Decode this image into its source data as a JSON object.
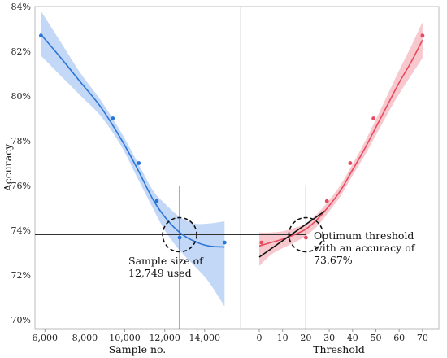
{
  "chart_data": {
    "type": "scatter",
    "ylabel": "Accuracy",
    "ylim": [
      69.6,
      84
    ],
    "y_ticks": [
      "70%",
      "72%",
      "74%",
      "76%",
      "78%",
      "80%",
      "82%",
      "84%"
    ],
    "y_tick_values": [
      70,
      72,
      74,
      76,
      78,
      80,
      82,
      84
    ],
    "panels": [
      {
        "xlabel": "Sample no.",
        "xlim": [
          5500,
          15800
        ],
        "x_ticks": [
          "6,000",
          "8,000",
          "10,000",
          "12,000",
          "14,000"
        ],
        "x_tick_values": [
          6000,
          8000,
          10000,
          12000,
          14000
        ],
        "color": "#2a76d8",
        "band_color": "#aac6f2",
        "series": [
          {
            "x": [
              5800,
              9400,
              10700,
              11600,
              12750,
              15000
            ],
            "y": [
              82.7,
              79.0,
              77.0,
              75.3,
              73.67,
              73.45
            ]
          }
        ],
        "fit": {
          "x": [
            5800,
            6800,
            7800,
            8800,
            9800,
            10600,
            11400,
            12000,
            12750,
            13500,
            14200,
            15000
          ],
          "y": [
            82.75,
            81.7,
            80.6,
            79.5,
            78.1,
            76.8,
            75.4,
            74.6,
            73.9,
            73.5,
            73.3,
            73.25
          ]
        },
        "band": {
          "upper": [
            83.8,
            82.4,
            81.0,
            79.8,
            78.4,
            77.1,
            75.8,
            75.2,
            74.6,
            74.3,
            74.3,
            74.4
          ],
          "lower": [
            81.8,
            80.9,
            80.0,
            79.1,
            77.8,
            76.4,
            75.0,
            74.0,
            73.1,
            72.4,
            71.7,
            70.6
          ]
        },
        "marker_x": 12749
      },
      {
        "xlabel": "Threshold",
        "xlim": [
          -8,
          77
        ],
        "x_ticks": [
          "0",
          "10",
          "20",
          "30",
          "40",
          "50",
          "60",
          "70"
        ],
        "x_tick_values": [
          0,
          10,
          20,
          30,
          40,
          50,
          60,
          70
        ],
        "color": "#e84a5f",
        "band_color": "#f3b0b9",
        "series": [
          {
            "x": [
              1,
              20,
              29,
              39,
              49,
              70
            ],
            "y": [
              73.45,
              73.67,
              75.3,
              77.0,
              79.0,
              82.7
            ]
          }
        ],
        "fit": {
          "x": [
            0,
            5,
            10,
            15,
            20,
            25,
            30,
            35,
            40,
            45,
            50,
            55,
            60,
            65,
            70
          ],
          "y": [
            73.3,
            73.45,
            73.6,
            73.8,
            74.05,
            74.5,
            75.1,
            75.8,
            76.7,
            77.6,
            78.6,
            79.6,
            80.6,
            81.5,
            82.5
          ]
        },
        "band": {
          "upper": [
            73.9,
            73.9,
            73.95,
            74.1,
            74.3,
            74.75,
            75.35,
            76.05,
            76.95,
            77.9,
            78.95,
            80.05,
            81.15,
            82.2,
            83.3
          ],
          "lower": [
            72.4,
            72.9,
            73.2,
            73.45,
            73.75,
            74.2,
            74.85,
            75.55,
            76.45,
            77.3,
            78.25,
            79.2,
            80.1,
            80.9,
            81.7
          ]
        },
        "marker_x": 20,
        "tangent": {
          "x": [
            0,
            28
          ],
          "y": [
            72.8,
            74.85
          ]
        }
      }
    ],
    "reference_y": 73.8,
    "annotations": [
      {
        "lines": [
          "Sample size of",
          "12,749 used"
        ]
      },
      {
        "lines": [
          "Optimum threshold",
          "with an accuracy of",
          "73.67%"
        ]
      }
    ]
  }
}
